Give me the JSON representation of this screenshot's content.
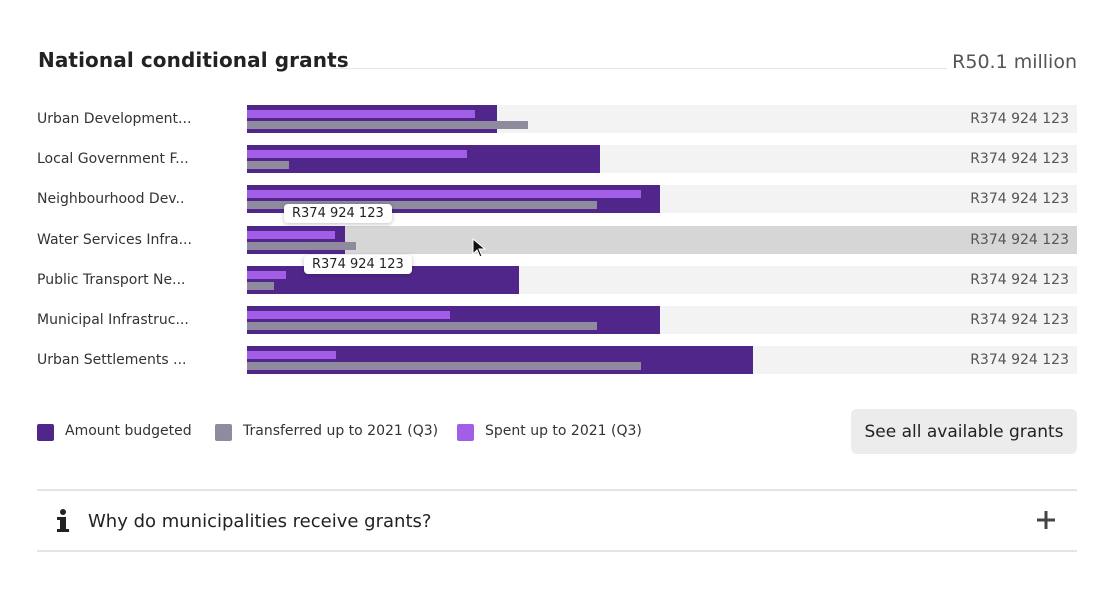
{
  "header": {
    "title": "National conditional grants",
    "total": "R50.1 million"
  },
  "chart_data": {
    "type": "bar",
    "orientation": "horizontal",
    "xlim": [
      0,
      100
    ],
    "categories": [
      "Urban Development...",
      "Local Government F...",
      "Neighbourhood Dev..",
      "Water Services Infra...",
      "Public Transport Ne...",
      "Municipal Infrastruc...",
      "Urban Settlements ..."
    ],
    "value_labels": [
      "R374 924 123",
      "R374 924 123",
      "R374 924 123",
      "R374 924 123",
      "R374 924 123",
      "R374 924 123",
      "R374 924 123"
    ],
    "series": [
      {
        "name": "Amount budgeted",
        "values": [
          30.1,
          42.5,
          49.8,
          11.8,
          32.8,
          49.8,
          61.0
        ]
      },
      {
        "name": "Spent up to 2021 (Q3)",
        "values": [
          27.5,
          26.5,
          47.5,
          10.6,
          4.7,
          24.5,
          10.7
        ]
      },
      {
        "name": "Transferred up to 2021 (Q3)",
        "values": [
          33.8,
          5.1,
          42.2,
          13.1,
          3.2,
          42.2,
          47.5
        ]
      }
    ],
    "active_index": 3,
    "tooltips": [
      {
        "text": "R374 924 123"
      },
      {
        "text": "R374 924 123"
      }
    ],
    "legend_position": "bottom-left"
  },
  "colors": {
    "budgeted": "#51268a",
    "transferred": "#8f8a9e",
    "spent": "#a35ee8"
  },
  "see_all_label": "See all available grants",
  "accordion": {
    "question": "Why do municipalities receive grants?",
    "icon": "info-icon",
    "toggle_icon": "plus-icon"
  }
}
